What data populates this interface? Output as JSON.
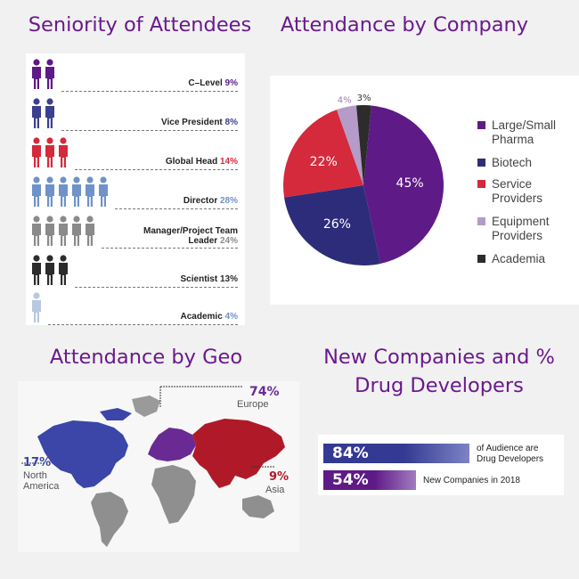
{
  "headings": {
    "seniority": "Seniority of Attendees",
    "company": "Attendance by Company",
    "geo": "Attendance by Geo",
    "newco": "New Companies and % Drug Developers"
  },
  "colors": {
    "purple": "#5e1a86",
    "blue": "#2d2c7a",
    "red": "#d42a3c",
    "lavender": "#b49bc8",
    "black": "#2c2c2c"
  },
  "chart_data": [
    {
      "type": "bar",
      "title": "Seniority of Attendees",
      "categories": [
        "C-Level",
        "Vice President",
        "Global Head",
        "Director",
        "Manager/Project Team Leader",
        "Scientist",
        "Academic"
      ],
      "values": [
        9,
        8,
        14,
        28,
        24,
        13,
        4
      ],
      "labels": [
        "C–Level",
        "Vice President",
        "Global Head",
        "Director",
        "Manager/Project Team Leader",
        "Scientist",
        "Academic"
      ],
      "pct_labels": [
        "9%",
        "8%",
        "14%",
        "28%",
        "24%",
        "13%",
        "4%"
      ],
      "colors": [
        "#5e1a86",
        "#3d3f8f",
        "#d42a3c",
        "#6f92c8",
        "#8a8a8a",
        "#2c2c2c",
        "#b8c8e0"
      ],
      "icon_counts": [
        2,
        2,
        3,
        6,
        5,
        3,
        1
      ]
    },
    {
      "type": "pie",
      "title": "Attendance by Company",
      "categories": [
        "Large/Small Pharma",
        "Biotech",
        "Service Providers",
        "Equipment Providers",
        "Academia"
      ],
      "values": [
        45,
        26,
        22,
        4,
        3
      ],
      "labels": [
        "45%",
        "26%",
        "22%",
        "4%",
        "3%"
      ],
      "colors": [
        "#5e1a86",
        "#2d2c7a",
        "#d42a3c",
        "#b49bc8",
        "#2c2c2c"
      ],
      "legend": "right"
    },
    {
      "type": "map",
      "title": "Attendance by Geo",
      "regions": [
        {
          "name": "North America",
          "value": 17,
          "label": "17%"
        },
        {
          "name": "Europe",
          "value": 74,
          "label": "74%"
        },
        {
          "name": "Asia",
          "value": 9,
          "label": "9%"
        }
      ]
    },
    {
      "type": "bar",
      "title": "New Companies and % Drug Developers",
      "categories": [
        "of Audience are Drug Developers",
        "New Companies in 2018"
      ],
      "values": [
        84,
        54
      ],
      "labels": [
        "84%",
        "54%"
      ]
    }
  ],
  "seniority": {
    "rows": [
      {
        "label": "C–Level",
        "pct": "9%",
        "count": 2,
        "color": "#5e1a86",
        "pct_color": "#5e1a86"
      },
      {
        "label": "Vice President",
        "pct": "8%",
        "count": 2,
        "color": "#3d3f8f",
        "pct_color": "#3d3f8f"
      },
      {
        "label": "Global Head",
        "pct": "14%",
        "count": 3,
        "color": "#d42a3c",
        "pct_color": "#d42a3c"
      },
      {
        "label": "Director",
        "pct": "28%",
        "count": 6,
        "color": "#6f92c8",
        "pct_color": "#6f92c8"
      },
      {
        "label_line1": "Manager/Project Team",
        "label_line2": "Leader",
        "pct": "24%",
        "count": 5,
        "color": "#8a8a8a",
        "pct_color": "#8a8a8a"
      },
      {
        "label": "Scientist",
        "pct": "13%",
        "count": 3,
        "color": "#2c2c2c",
        "pct_color": "#2c2c2c"
      },
      {
        "label": "Academic",
        "pct": "4%",
        "count": 1,
        "color": "#b8c8e0",
        "pct_color": "#6f92c8"
      }
    ]
  },
  "company": {
    "legend": [
      {
        "label_line1": "Large/Small",
        "label_line2": "Pharma",
        "color": "#5e1a86"
      },
      {
        "label_line1": "Biotech",
        "label_line2": "",
        "color": "#2d2c7a"
      },
      {
        "label_line1": "Service",
        "label_line2": "Providers",
        "color": "#d42a3c"
      },
      {
        "label_line1": "Equipment",
        "label_line2": "Providers",
        "color": "#b49bc8"
      },
      {
        "label_line1": "Academia",
        "label_line2": "",
        "color": "#2c2c2c"
      }
    ]
  },
  "geo": {
    "europe_pct": "74%",
    "europe_label": "Europe",
    "na_pct": "17%",
    "na_label_line1": "North",
    "na_label_line2": "America",
    "asia_pct": "9%",
    "asia_label": "Asia"
  },
  "newco": {
    "bar1_pct": "84%",
    "bar1_label_line1": "of Audience are",
    "bar1_label_line2": "Drug Developers",
    "bar2_pct": "54%",
    "bar2_label": "New Companies in 2018"
  }
}
